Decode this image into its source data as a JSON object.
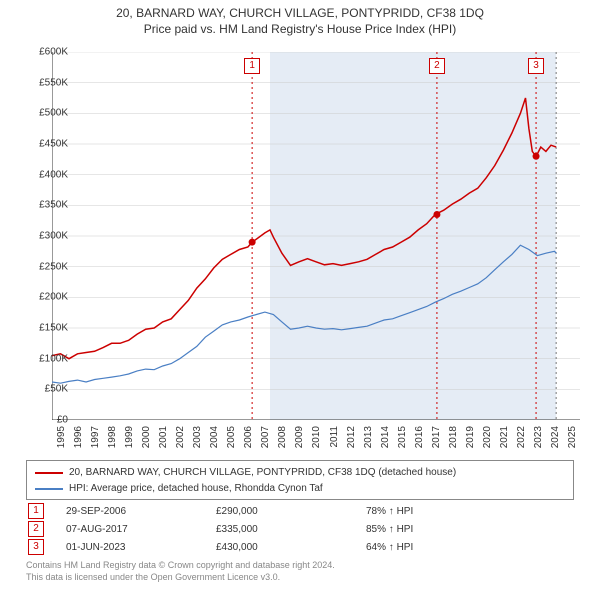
{
  "title_line1": "20, BARNARD WAY, CHURCH VILLAGE, PONTYPRIDD, CF38 1DQ",
  "title_line2": "Price paid vs. HM Land Registry's House Price Index (HPI)",
  "chart": {
    "type": "line",
    "background_color": "#ffffff",
    "shaded_region_color": "#e5ecf5",
    "shaded_region_x": [
      2007.8,
      2024.6
    ],
    "xlim": [
      1995,
      2026
    ],
    "ylim": [
      0,
      600000
    ],
    "x_ticks": [
      1995,
      1996,
      1997,
      1998,
      1999,
      2000,
      2001,
      2002,
      2003,
      2004,
      2005,
      2006,
      2007,
      2008,
      2009,
      2010,
      2011,
      2012,
      2013,
      2014,
      2015,
      2016,
      2017,
      2018,
      2019,
      2020,
      2021,
      2022,
      2023,
      2024,
      2025
    ],
    "x_tick_labels": [
      "1995",
      "1996",
      "1997",
      "1998",
      "1999",
      "2000",
      "2001",
      "2002",
      "2003",
      "2004",
      "2005",
      "2006",
      "2007",
      "2008",
      "2009",
      "2010",
      "2011",
      "2012",
      "2013",
      "2014",
      "2015",
      "2016",
      "2017",
      "2018",
      "2019",
      "2020",
      "2021",
      "2022",
      "2023",
      "2024",
      "2025"
    ],
    "y_ticks": [
      0,
      50000,
      100000,
      150000,
      200000,
      250000,
      300000,
      350000,
      400000,
      450000,
      500000,
      550000,
      600000
    ],
    "y_tick_labels": [
      "£0",
      "£50K",
      "£100K",
      "£150K",
      "£200K",
      "£250K",
      "£300K",
      "£350K",
      "£400K",
      "£450K",
      "£500K",
      "£550K",
      "£600K"
    ],
    "grid_color": "#cccccc",
    "axis_color": "#333333",
    "axis_fontsize": 10,
    "series": [
      {
        "name": "20, BARNARD WAY, CHURCH VILLAGE, PONTYPRIDD, CF38 1DQ (detached house)",
        "color": "#cc0000",
        "line_width": 1.5,
        "data": [
          [
            1995,
            105000
          ],
          [
            1995.5,
            108000
          ],
          [
            1996,
            100000
          ],
          [
            1996.5,
            108000
          ],
          [
            1997,
            110000
          ],
          [
            1997.5,
            112000
          ],
          [
            1998,
            118000
          ],
          [
            1998.5,
            125000
          ],
          [
            1999,
            125000
          ],
          [
            1999.5,
            130000
          ],
          [
            2000,
            140000
          ],
          [
            2000.5,
            148000
          ],
          [
            2001,
            150000
          ],
          [
            2001.5,
            160000
          ],
          [
            2002,
            165000
          ],
          [
            2002.5,
            180000
          ],
          [
            2003,
            195000
          ],
          [
            2003.5,
            215000
          ],
          [
            2004,
            230000
          ],
          [
            2004.5,
            248000
          ],
          [
            2005,
            262000
          ],
          [
            2005.5,
            270000
          ],
          [
            2006,
            278000
          ],
          [
            2006.5,
            282000
          ],
          [
            2006.75,
            290000
          ],
          [
            2007,
            295000
          ],
          [
            2007.5,
            305000
          ],
          [
            2007.8,
            310000
          ],
          [
            2008,
            298000
          ],
          [
            2008.5,
            272000
          ],
          [
            2009,
            252000
          ],
          [
            2009.5,
            258000
          ],
          [
            2010,
            263000
          ],
          [
            2010.5,
            258000
          ],
          [
            2011,
            253000
          ],
          [
            2011.5,
            255000
          ],
          [
            2012,
            252000
          ],
          [
            2012.5,
            255000
          ],
          [
            2013,
            258000
          ],
          [
            2013.5,
            262000
          ],
          [
            2014,
            270000
          ],
          [
            2014.5,
            278000
          ],
          [
            2015,
            282000
          ],
          [
            2015.5,
            290000
          ],
          [
            2016,
            298000
          ],
          [
            2016.5,
            310000
          ],
          [
            2017,
            320000
          ],
          [
            2017.5,
            335000
          ],
          [
            2018,
            342000
          ],
          [
            2018.5,
            352000
          ],
          [
            2019,
            360000
          ],
          [
            2019.5,
            370000
          ],
          [
            2020,
            378000
          ],
          [
            2020.5,
            395000
          ],
          [
            2021,
            415000
          ],
          [
            2021.5,
            440000
          ],
          [
            2022,
            468000
          ],
          [
            2022.5,
            500000
          ],
          [
            2022.8,
            525000
          ],
          [
            2023,
            475000
          ],
          [
            2023.2,
            438000
          ],
          [
            2023.42,
            430000
          ],
          [
            2023.7,
            445000
          ],
          [
            2024,
            438000
          ],
          [
            2024.3,
            448000
          ],
          [
            2024.6,
            445000
          ]
        ]
      },
      {
        "name": "HPI: Average price, detached house, Rhondda Cynon Taf",
        "color": "#4a7fc4",
        "line_width": 1.2,
        "data": [
          [
            1995,
            62000
          ],
          [
            1995.5,
            60000
          ],
          [
            1996,
            63000
          ],
          [
            1996.5,
            65000
          ],
          [
            1997,
            62000
          ],
          [
            1997.5,
            66000
          ],
          [
            1998,
            68000
          ],
          [
            1998.5,
            70000
          ],
          [
            1999,
            72000
          ],
          [
            1999.5,
            75000
          ],
          [
            2000,
            80000
          ],
          [
            2000.5,
            83000
          ],
          [
            2001,
            82000
          ],
          [
            2001.5,
            88000
          ],
          [
            2002,
            92000
          ],
          [
            2002.5,
            100000
          ],
          [
            2003,
            110000
          ],
          [
            2003.5,
            120000
          ],
          [
            2004,
            135000
          ],
          [
            2004.5,
            145000
          ],
          [
            2005,
            155000
          ],
          [
            2005.5,
            160000
          ],
          [
            2006,
            163000
          ],
          [
            2006.5,
            168000
          ],
          [
            2007,
            172000
          ],
          [
            2007.5,
            176000
          ],
          [
            2008,
            172000
          ],
          [
            2008.5,
            160000
          ],
          [
            2009,
            148000
          ],
          [
            2009.5,
            150000
          ],
          [
            2010,
            153000
          ],
          [
            2010.5,
            150000
          ],
          [
            2011,
            148000
          ],
          [
            2011.5,
            149000
          ],
          [
            2012,
            147000
          ],
          [
            2012.5,
            149000
          ],
          [
            2013,
            151000
          ],
          [
            2013.5,
            153000
          ],
          [
            2014,
            158000
          ],
          [
            2014.5,
            163000
          ],
          [
            2015,
            165000
          ],
          [
            2015.5,
            170000
          ],
          [
            2016,
            175000
          ],
          [
            2016.5,
            180000
          ],
          [
            2017,
            185000
          ],
          [
            2017.5,
            192000
          ],
          [
            2018,
            198000
          ],
          [
            2018.5,
            205000
          ],
          [
            2019,
            210000
          ],
          [
            2019.5,
            216000
          ],
          [
            2020,
            222000
          ],
          [
            2020.5,
            232000
          ],
          [
            2021,
            245000
          ],
          [
            2021.5,
            258000
          ],
          [
            2022,
            270000
          ],
          [
            2022.5,
            285000
          ],
          [
            2023,
            278000
          ],
          [
            2023.5,
            268000
          ],
          [
            2024,
            272000
          ],
          [
            2024.5,
            275000
          ],
          [
            2024.6,
            272000
          ]
        ]
      }
    ],
    "sale_markers": [
      {
        "n": "1",
        "x": 2006.75,
        "y": 290000
      },
      {
        "n": "2",
        "x": 2017.6,
        "y": 335000
      },
      {
        "n": "3",
        "x": 2023.42,
        "y": 430000
      }
    ],
    "marker_line_color": "#cc0000",
    "latest_x_line": 2024.6,
    "latest_x_line_color": "#777777"
  },
  "legend": {
    "items": [
      {
        "label": "20, BARNARD WAY, CHURCH VILLAGE, PONTYPRIDD, CF38 1DQ (detached house)",
        "color": "#cc0000"
      },
      {
        "label": "HPI: Average price, detached house, Rhondda Cynon Taf",
        "color": "#4a7fc4"
      }
    ]
  },
  "transactions": [
    {
      "n": "1",
      "date": "29-SEP-2006",
      "price": "£290,000",
      "hpi": "78% ↑ HPI"
    },
    {
      "n": "2",
      "date": "07-AUG-2017",
      "price": "£335,000",
      "hpi": "85% ↑ HPI"
    },
    {
      "n": "3",
      "date": "01-JUN-2023",
      "price": "£430,000",
      "hpi": "64% ↑ HPI"
    }
  ],
  "footer_line1": "Contains HM Land Registry data © Crown copyright and database right 2024.",
  "footer_line2": "This data is licensed under the Open Government Licence v3.0."
}
